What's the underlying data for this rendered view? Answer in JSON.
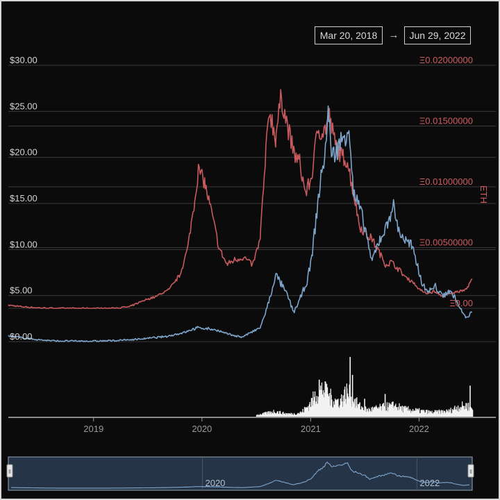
{
  "date_range": {
    "start": "Mar 20, 2018",
    "arrow": "→",
    "end": "Jun 29, 2022"
  },
  "colors": {
    "background": "#0b0b0c",
    "usd_line": "#7ea6cc",
    "eth_line": "#c85a5e",
    "eth_label": "#d05c60",
    "usd_label": "#d4d4d4",
    "grid": "#3a3a3d",
    "volume": "#f2f2f2",
    "navigator_fill": "#263448"
  },
  "chart_data": {
    "type": "line",
    "x_range": [
      "2018-03-20",
      "2022-06-29"
    ],
    "x_ticks": [
      {
        "date": "2019-01-01",
        "label": "2019"
      },
      {
        "date": "2020-01-01",
        "label": "2020"
      },
      {
        "date": "2021-01-01",
        "label": "2021"
      },
      {
        "date": "2022-01-01",
        "label": "2022"
      }
    ],
    "y_left": {
      "range": [
        0,
        30
      ],
      "ticks": [
        {
          "value": 0,
          "label": "$0.00"
        },
        {
          "value": 5,
          "label": "$5.00"
        },
        {
          "value": 10,
          "label": "$10.00"
        },
        {
          "value": 15,
          "label": "$15.00"
        },
        {
          "value": 20,
          "label": "$20.00"
        },
        {
          "value": 25,
          "label": "$25.00"
        },
        {
          "value": 30,
          "label": "$30.00"
        }
      ]
    },
    "y_right": {
      "label": "ETH",
      "range": [
        0,
        0.02
      ],
      "ticks": [
        {
          "value": 0,
          "label": "Ξ0.00"
        },
        {
          "value": 0.005,
          "label": "Ξ0.00500000"
        },
        {
          "value": 0.01,
          "label": "Ξ0.01000000"
        },
        {
          "value": 0.015,
          "label": "Ξ0.01500000"
        },
        {
          "value": 0.02,
          "label": "Ξ0.02000000"
        }
      ]
    },
    "series": [
      {
        "axis": "left",
        "points": [
          [
            "2018-03-20",
            0.62
          ],
          [
            "2018-05-01",
            0.45
          ],
          [
            "2018-07-01",
            0.2
          ],
          [
            "2018-09-01",
            0.07
          ],
          [
            "2018-11-01",
            0.06
          ],
          [
            "2019-01-01",
            0.05
          ],
          [
            "2019-03-01",
            0.1
          ],
          [
            "2019-05-01",
            0.2
          ],
          [
            "2019-07-01",
            0.35
          ],
          [
            "2019-09-01",
            0.55
          ],
          [
            "2019-11-01",
            1.0
          ],
          [
            "2019-12-15",
            1.5
          ],
          [
            "2020-01-10",
            1.45
          ],
          [
            "2020-02-15",
            1.3
          ],
          [
            "2020-03-20",
            0.9
          ],
          [
            "2020-04-15",
            0.7
          ],
          [
            "2020-05-15",
            0.5
          ],
          [
            "2020-06-15",
            1.0
          ],
          [
            "2020-07-15",
            1.5
          ],
          [
            "2020-08-01",
            3.0
          ],
          [
            "2020-08-20",
            5.0
          ],
          [
            "2020-09-05",
            7.3
          ],
          [
            "2020-09-25",
            6.2
          ],
          [
            "2020-10-15",
            5.0
          ],
          [
            "2020-11-05",
            3.2
          ],
          [
            "2020-11-25",
            4.5
          ],
          [
            "2020-12-20",
            6.5
          ],
          [
            "2021-01-05",
            9.0
          ],
          [
            "2021-01-25",
            15.0
          ],
          [
            "2021-02-20",
            21.0
          ],
          [
            "2021-03-01",
            25.0
          ],
          [
            "2021-03-15",
            20.0
          ],
          [
            "2021-04-01",
            21.0
          ],
          [
            "2021-04-20",
            22.0
          ],
          [
            "2021-05-10",
            23.5
          ],
          [
            "2021-05-25",
            16.0
          ],
          [
            "2021-06-15",
            14.5
          ],
          [
            "2021-07-10",
            11.5
          ],
          [
            "2021-07-25",
            8.5
          ],
          [
            "2021-08-20",
            11.0
          ],
          [
            "2021-09-15",
            12.5
          ],
          [
            "2021-10-05",
            15.0
          ],
          [
            "2021-10-25",
            12.0
          ],
          [
            "2021-11-15",
            11.0
          ],
          [
            "2021-12-05",
            10.5
          ],
          [
            "2021-12-25",
            8.5
          ],
          [
            "2022-01-15",
            6.0
          ],
          [
            "2022-02-05",
            5.5
          ],
          [
            "2022-02-25",
            6.0
          ],
          [
            "2022-03-20",
            5.0
          ],
          [
            "2022-04-10",
            5.5
          ],
          [
            "2022-04-30",
            5.0
          ],
          [
            "2022-05-20",
            3.5
          ],
          [
            "2022-06-10",
            2.5
          ],
          [
            "2022-06-29",
            3.2
          ]
        ]
      },
      {
        "axis": "right",
        "points": [
          [
            "2018-03-20",
            0.00026
          ],
          [
            "2018-05-01",
            0.00014
          ],
          [
            "2018-07-01",
            4e-05
          ],
          [
            "2018-09-01",
            0.0
          ],
          [
            "2018-11-01",
            0.0
          ],
          [
            "2019-01-01",
            0.0
          ],
          [
            "2019-03-01",
            0.0
          ],
          [
            "2019-05-01",
            0.00012
          ],
          [
            "2019-06-15",
            0.0006
          ],
          [
            "2019-08-01",
            0.001
          ],
          [
            "2019-09-15",
            0.0016
          ],
          [
            "2019-10-20",
            0.0028
          ],
          [
            "2019-11-15",
            0.005
          ],
          [
            "2019-12-05",
            0.0085
          ],
          [
            "2019-12-20",
            0.0114
          ],
          [
            "2020-01-10",
            0.0104
          ],
          [
            "2020-02-05",
            0.0076
          ],
          [
            "2020-03-01",
            0.0048
          ],
          [
            "2020-03-25",
            0.0036
          ],
          [
            "2020-04-20",
            0.004
          ],
          [
            "2020-05-20",
            0.0042
          ],
          [
            "2020-06-20",
            0.0036
          ],
          [
            "2020-07-15",
            0.0056
          ],
          [
            "2020-08-01",
            0.0118
          ],
          [
            "2020-08-15",
            0.0164
          ],
          [
            "2020-09-05",
            0.014
          ],
          [
            "2020-09-25",
            0.0175
          ],
          [
            "2020-10-15",
            0.015
          ],
          [
            "2020-11-05",
            0.0128
          ],
          [
            "2020-11-25",
            0.012
          ],
          [
            "2020-12-15",
            0.0095
          ],
          [
            "2021-01-05",
            0.0108
          ],
          [
            "2021-01-25",
            0.0148
          ],
          [
            "2021-02-15",
            0.0145
          ],
          [
            "2021-03-05",
            0.0158
          ],
          [
            "2021-03-25",
            0.0135
          ],
          [
            "2021-04-15",
            0.0125
          ],
          [
            "2021-05-05",
            0.0122
          ],
          [
            "2021-05-25",
            0.0095
          ],
          [
            "2021-06-15",
            0.0068
          ],
          [
            "2021-07-10",
            0.006
          ],
          [
            "2021-07-25",
            0.0058
          ],
          [
            "2021-08-20",
            0.0046
          ],
          [
            "2021-09-10",
            0.0036
          ],
          [
            "2021-10-01",
            0.0038
          ],
          [
            "2021-10-25",
            0.0032
          ],
          [
            "2021-11-15",
            0.0026
          ],
          [
            "2021-12-10",
            0.0022
          ],
          [
            "2022-01-01",
            0.0016
          ],
          [
            "2022-01-25",
            0.0012
          ],
          [
            "2022-02-20",
            0.0014
          ],
          [
            "2022-03-20",
            0.001
          ],
          [
            "2022-04-15",
            0.0012
          ],
          [
            "2022-05-15",
            0.0014
          ],
          [
            "2022-06-10",
            0.0016
          ],
          [
            "2022-06-29",
            0.0024
          ]
        ]
      }
    ],
    "volume": {
      "range": [
        0,
        1
      ],
      "points": [
        [
          "2020-07-01",
          0.03
        ],
        [
          "2020-08-01",
          0.06
        ],
        [
          "2020-09-01",
          0.1
        ],
        [
          "2020-10-01",
          0.06
        ],
        [
          "2020-11-01",
          0.05
        ],
        [
          "2020-12-01",
          0.08
        ],
        [
          "2021-01-01",
          0.25
        ],
        [
          "2021-01-20",
          0.42
        ],
        [
          "2021-02-10",
          0.5
        ],
        [
          "2021-03-01",
          0.38
        ],
        [
          "2021-03-20",
          0.3
        ],
        [
          "2021-04-10",
          0.28
        ],
        [
          "2021-05-01",
          0.45
        ],
        [
          "2021-05-20",
          0.35
        ],
        [
          "2021-06-10",
          0.2
        ],
        [
          "2021-07-10",
          0.12
        ],
        [
          "2021-08-10",
          0.15
        ],
        [
          "2021-09-10",
          0.18
        ],
        [
          "2021-10-10",
          0.2
        ],
        [
          "2021-11-10",
          0.14
        ],
        [
          "2021-12-10",
          0.12
        ],
        [
          "2022-01-10",
          0.1
        ],
        [
          "2022-02-10",
          0.08
        ],
        [
          "2022-03-10",
          0.09
        ],
        [
          "2022-04-10",
          0.1
        ],
        [
          "2022-05-10",
          0.18
        ],
        [
          "2022-06-10",
          0.2
        ],
        [
          "2022-06-29",
          0.15
        ]
      ],
      "spikes": [
        [
          "2021-01-28",
          0.62
        ],
        [
          "2021-02-22",
          0.55
        ],
        [
          "2021-05-12",
          1.0
        ],
        [
          "2021-05-20",
          0.7
        ],
        [
          "2021-06-30",
          0.3
        ],
        [
          "2021-09-07",
          0.38
        ],
        [
          "2022-06-20",
          0.52
        ]
      ]
    },
    "navigator": {
      "x_ticks": [
        {
          "date": "2020-01-01",
          "label": "2020"
        },
        {
          "date": "2022-01-01",
          "label": "2022"
        }
      ],
      "handle_glyph": "⦀"
    }
  }
}
